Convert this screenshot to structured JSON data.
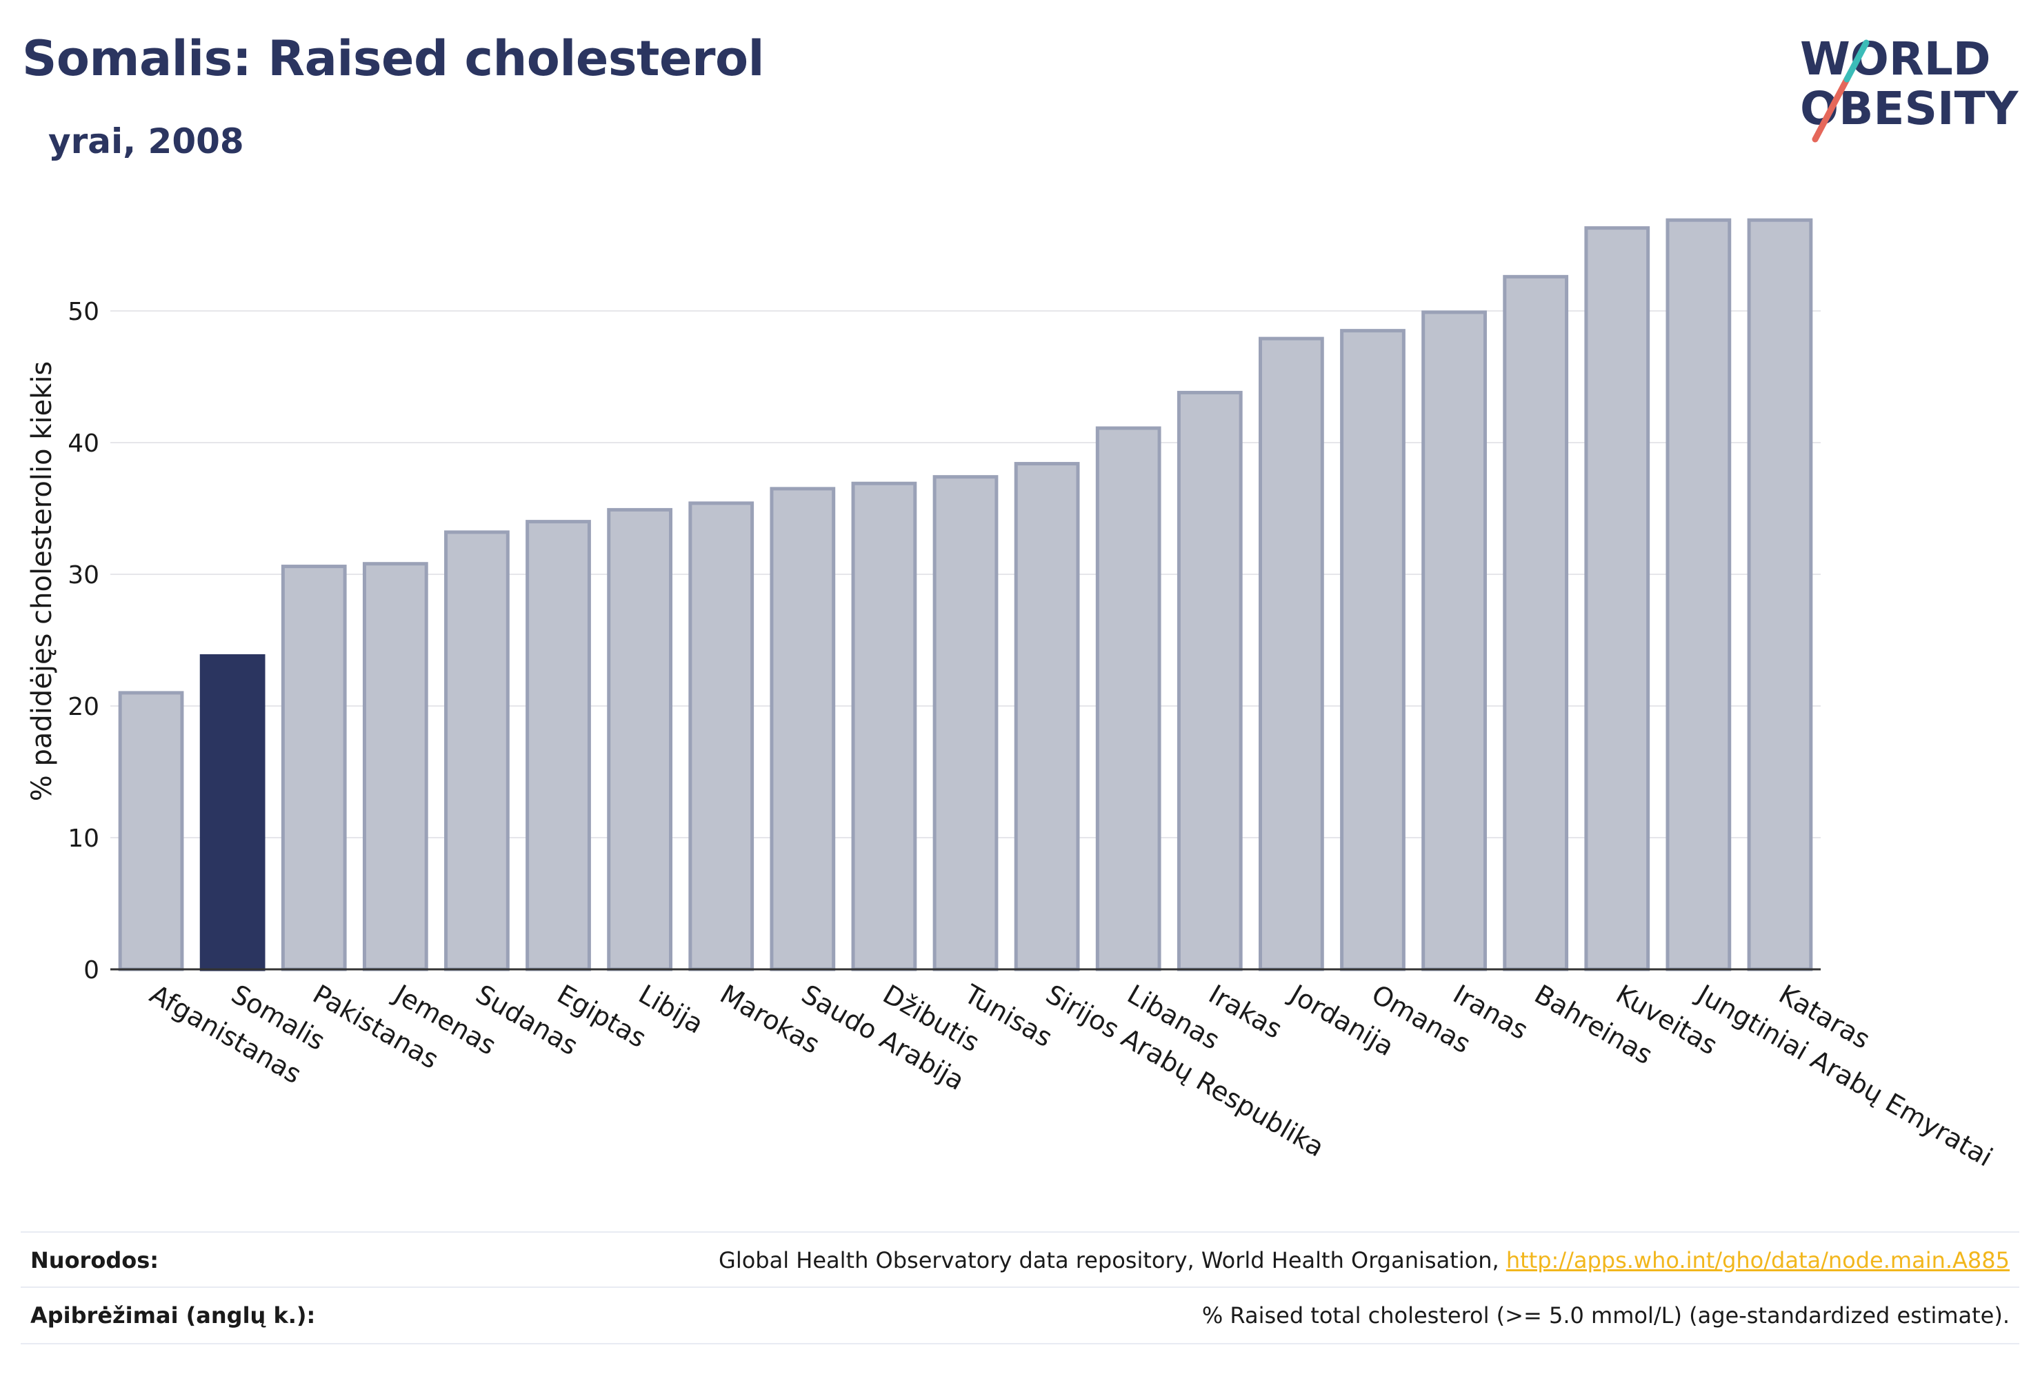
{
  "header": {
    "title": "Somalis: Raised cholesterol",
    "subtitle": "yrai, 2008"
  },
  "logo": {
    "line1": "WORLD",
    "line2": "OBESITY",
    "slash_colors": [
      "#e5675a",
      "#3bbcb8"
    ]
  },
  "colors": {
    "bar_fill": "#bec2ce",
    "bar_stroke": "#9aa1b7",
    "highlight": "#2b3560",
    "grid": "#e6e6ea"
  },
  "chart_data": {
    "type": "bar",
    "categories": [
      "Afganistanas",
      "Somalis",
      "Pakistanas",
      "Jemenas",
      "Sudanas",
      "Egiptas",
      "Libija",
      "Marokas",
      "Saudo Arabija",
      "Džibutis",
      "Tunisas",
      "Sirijos Arabų Respublika",
      "Libanas",
      "Irakas",
      "Jordanija",
      "Omanas",
      "Iranas",
      "Bahreinas",
      "Kuveitas",
      "Jungtiniai Arabų Emyratai",
      "Kataras"
    ],
    "values": [
      21.0,
      23.8,
      30.6,
      30.8,
      33.2,
      34.0,
      34.9,
      35.4,
      36.5,
      36.9,
      37.4,
      38.4,
      41.1,
      43.8,
      47.9,
      48.5,
      49.9,
      52.6,
      56.3,
      56.9,
      56.9
    ],
    "highlight": "Somalis",
    "ylabel": "% padidėjęs cholesterolio kiekis",
    "yticks": [
      0,
      10,
      20,
      30,
      40,
      50
    ],
    "ylim": [
      0,
      60
    ],
    "grid": true
  },
  "footer": {
    "references_label": "Nuorodos:",
    "references_text": "Global Health Observatory data repository, World Health Organisation,",
    "references_link": "http://apps.who.int/gho/data/node.main.A885",
    "definitions_label": "Apibrėžimai (anglų k.):",
    "definitions_text": "% Raised total cholesterol (>= 5.0 mmol/L) (age-standardized estimate)."
  }
}
